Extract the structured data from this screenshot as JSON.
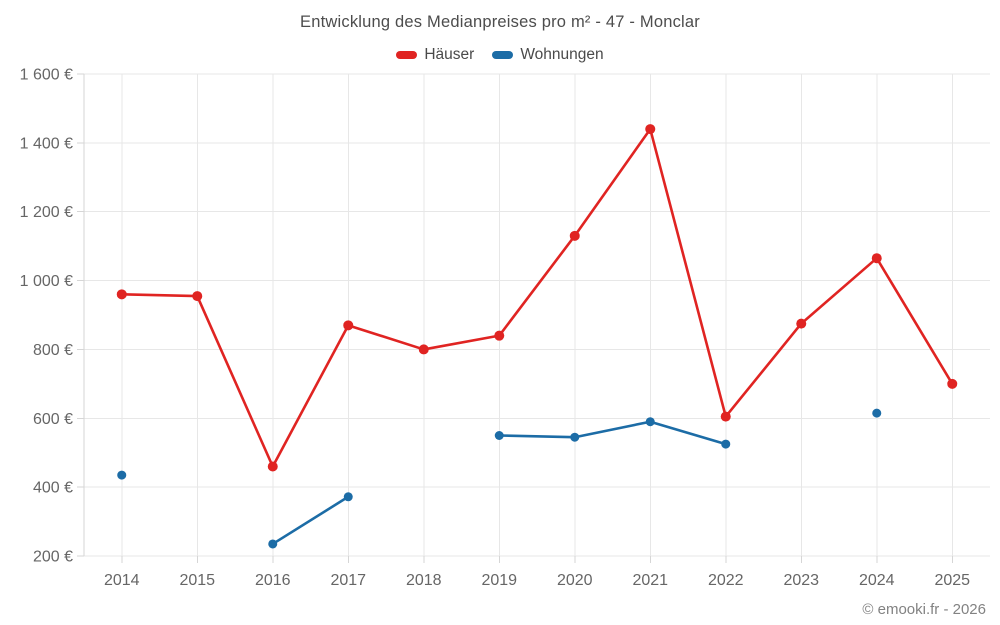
{
  "title": "Entwicklung des Medianpreises pro m² - 47 - Monclar",
  "legend": {
    "items": [
      {
        "label": "Häuser",
        "color": "#e02422"
      },
      {
        "label": "Wohnungen",
        "color": "#1c6ca6"
      }
    ]
  },
  "watermark": "© emooki.fr - 2026",
  "chart_data": {
    "type": "line",
    "title": "Entwicklung des Medianpreises pro m² - 47 - Monclar",
    "categories": [
      "2014",
      "2015",
      "2016",
      "2017",
      "2018",
      "2019",
      "2020",
      "2021",
      "2022",
      "2023",
      "2024",
      "2025"
    ],
    "series": [
      {
        "name": "Häuser",
        "color": "#e02422",
        "values": [
          960,
          955,
          460,
          870,
          800,
          840,
          1130,
          1440,
          605,
          875,
          1065,
          700
        ]
      },
      {
        "name": "Wohnungen",
        "color": "#1c6ca6",
        "values": [
          435,
          null,
          235,
          372,
          null,
          550,
          545,
          590,
          525,
          null,
          615,
          null
        ]
      }
    ],
    "xlabel": "",
    "ylabel": "",
    "ylim": [
      200,
      1600
    ],
    "ytick_step": 200,
    "ytick_labels": [
      "200 €",
      "400 €",
      "600 €",
      "800 €",
      "1 000 €",
      "1 200 €",
      "1 400 €",
      "1 600 €"
    ],
    "grid": true,
    "legend_position": "top",
    "currency": "€"
  }
}
